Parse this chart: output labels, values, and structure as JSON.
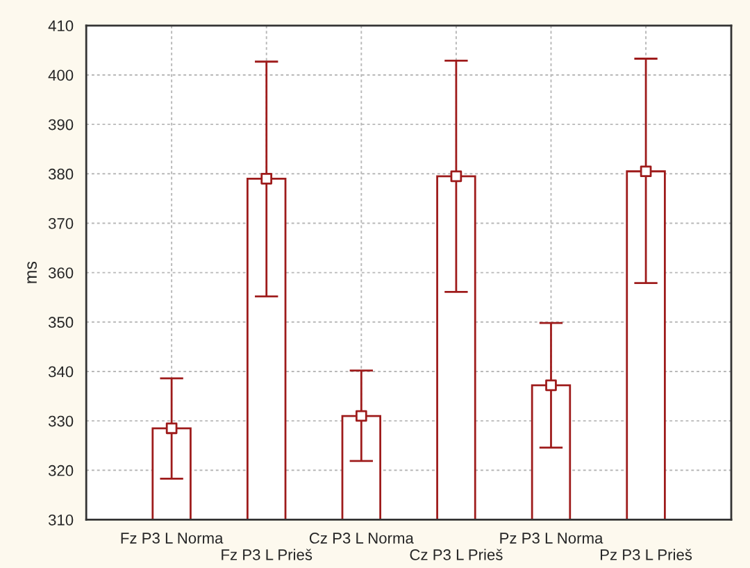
{
  "chart_data": {
    "type": "bar",
    "ylabel": "ms",
    "categories": [
      "Fz P3 L Norma",
      "Fz P3 L Prieš",
      "Cz P3 L Norma",
      "Cz P3 L Prieš",
      "Pz P3 L Norma",
      "Pz P3 L Prieš"
    ],
    "series": [
      {
        "color": "#9e1b1b",
        "values": [
          328.5,
          379.0,
          331.0,
          379.5,
          337.2,
          380.5
        ],
        "errors": [
          [
            318.3,
            338.6
          ],
          [
            355.2,
            402.7
          ],
          [
            321.9,
            340.2
          ],
          [
            356.1,
            402.9
          ],
          [
            324.6,
            349.8
          ],
          [
            357.9,
            403.3
          ]
        ]
      },
      {
        "type": "scatter",
        "color": "#9e1b1b",
        "marker": "square",
        "x": [
          "Fz P3 L Norma",
          "Fz P3 L Prieš",
          "Cz P3 L Norma",
          "Cz P3 L Prieš",
          "Pz P3 L Norma",
          "Pz P3 L Prieš"
        ],
        "values": [
          328.5,
          379.0,
          331.0,
          379.5,
          337.2,
          380.5
        ]
      }
    ],
    "ylim": [
      310,
      410
    ],
    "yticks": [
      310,
      320,
      330,
      340,
      350,
      360,
      370,
      380,
      390,
      400,
      410
    ],
    "grid": true
  }
}
